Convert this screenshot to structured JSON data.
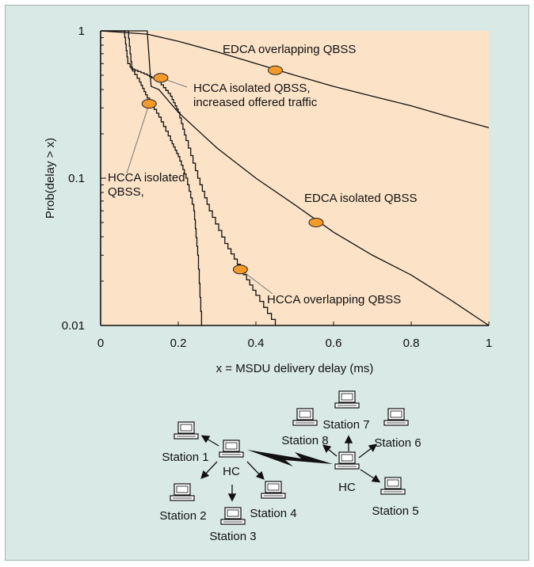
{
  "chart_data": {
    "type": "line",
    "xlabel": "x = MSDU delivery delay (ms)",
    "ylabel": "Prob(delay > x)",
    "xlim": [
      0,
      1
    ],
    "ylim": [
      0.01,
      1
    ],
    "yscale": "log",
    "grid": false,
    "xticks": [
      "0",
      "0.2",
      "0.4",
      "0.6",
      "0.8",
      "1"
    ],
    "yticks": [
      "0.01",
      "0.1",
      "1"
    ],
    "series": [
      {
        "name": "EDCA overlapping QBSS",
        "x": [
          0,
          0.12,
          0.2,
          0.3,
          0.4,
          0.5,
          0.6,
          0.7,
          0.8,
          0.9,
          1.0
        ],
        "y": [
          1,
          0.95,
          0.85,
          0.72,
          0.6,
          0.5,
          0.42,
          0.36,
          0.31,
          0.26,
          0.22
        ]
      },
      {
        "name": "EDCA isolated QBSS",
        "x": [
          0,
          0.12,
          0.13,
          0.15,
          0.2,
          0.3,
          0.4,
          0.5,
          0.6,
          0.7,
          0.8,
          0.9,
          1.0
        ],
        "y": [
          1,
          1,
          0.42,
          0.4,
          0.28,
          0.16,
          0.1,
          0.066,
          0.043,
          0.03,
          0.022,
          0.015,
          0.01
        ]
      },
      {
        "name": "HCCA isolated QBSS, increased offered traffic",
        "x": [
          0,
          0.07,
          0.08,
          0.12,
          0.15,
          0.18,
          0.2,
          0.22,
          0.25,
          0.28,
          0.32,
          0.36,
          0.4,
          0.45
        ],
        "y": [
          1,
          1,
          0.55,
          0.5,
          0.45,
          0.36,
          0.28,
          0.18,
          0.1,
          0.06,
          0.036,
          0.024,
          0.016,
          0.01
        ]
      },
      {
        "name": "HCCA isolated QBSS,",
        "x": [
          0,
          0.06,
          0.07,
          0.1,
          0.12,
          0.15,
          0.18,
          0.2,
          0.22,
          0.24,
          0.25,
          0.26
        ],
        "y": [
          1,
          1,
          0.6,
          0.45,
          0.35,
          0.26,
          0.18,
          0.14,
          0.1,
          0.06,
          0.03,
          0.01
        ]
      }
    ],
    "annotations": [
      {
        "text": "EDCA overlapping QBSS",
        "x": 0.45,
        "y": 0.54
      },
      {
        "text": "HCCA isolated QBSS,",
        "text2": "increased offered traffic",
        "x": 0.155,
        "y": 0.48
      },
      {
        "text": "HCCA isolated",
        "text2": "QBSS,",
        "x": 0.125,
        "y": 0.32
      },
      {
        "text": "EDCA isolated QBSS",
        "x": 0.555,
        "y": 0.05
      },
      {
        "text": "HCCA overlapping QBSS",
        "x": 0.36,
        "y": 0.024
      }
    ]
  },
  "network": {
    "left_cell": {
      "hc": "HC",
      "stations": [
        "Station 1",
        "Station 2",
        "Station 3",
        "Station 4"
      ]
    },
    "right_cell": {
      "hc": "HC",
      "stations": [
        "Station 5",
        "Station 6",
        "Station 7",
        "Station 8"
      ]
    }
  },
  "colors": {
    "plot_bg": "#fce3c8",
    "frame_bg": "#d9e9e6",
    "marker": "#f39a2a"
  }
}
